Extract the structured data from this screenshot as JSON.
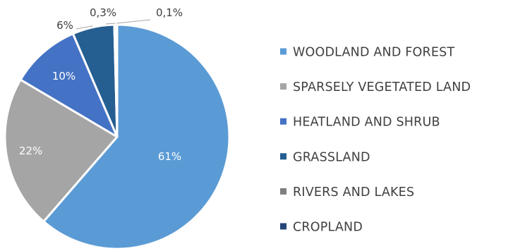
{
  "chart_data": {
    "type": "pie",
    "title": "",
    "legend_position": "right",
    "start_angle_deg": 0,
    "direction": "clockwise",
    "slices": [
      {
        "name": "WOODLAND AND FOREST",
        "value": 61,
        "label": "61%",
        "color": "#5b9bd5"
      },
      {
        "name": "SPARSELY VEGETATED LAND",
        "value": 22,
        "label": "22%",
        "color": "#a5a5a5"
      },
      {
        "name": "HEATLAND AND SHRUB",
        "value": 10,
        "label": "10%",
        "color": "#4472c4"
      },
      {
        "name": "GRASSLAND",
        "value": 6,
        "label": "6%",
        "color": "#255e91"
      },
      {
        "name": "RIVERS AND LAKES",
        "value": 0.3,
        "label": "0,3%",
        "color": "#7f7f7f"
      },
      {
        "name": "CROPLAND",
        "value": 0.1,
        "label": "0,1%",
        "color": "#264478"
      }
    ]
  }
}
